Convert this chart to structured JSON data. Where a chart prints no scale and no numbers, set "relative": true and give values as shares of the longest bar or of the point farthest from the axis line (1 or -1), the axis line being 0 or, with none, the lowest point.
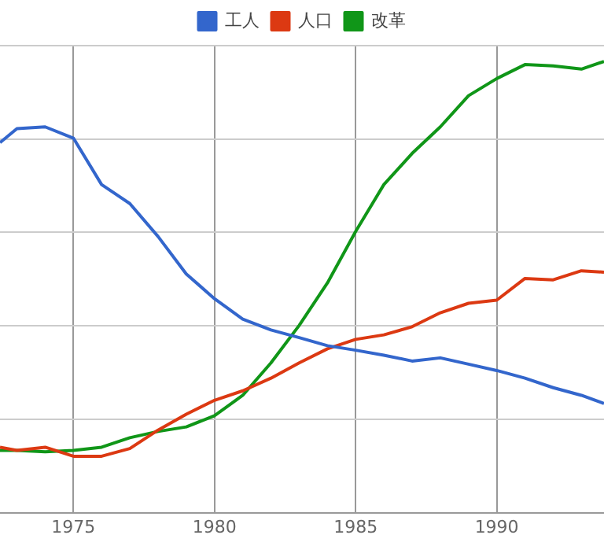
{
  "chart_data": {
    "type": "line",
    "relative": true,
    "grid": true,
    "legend": "top",
    "marker": "none",
    "line_style": "solid",
    "x": [
      1972.4,
      1973,
      1974,
      1975,
      1976,
      1977,
      1978,
      1979,
      1980,
      1981,
      1982,
      1983,
      1984,
      1985,
      1986,
      1987,
      1988,
      1989,
      1990,
      1991,
      1992,
      1993,
      1993.8
    ],
    "xlim": [
      1972.4,
      1993.8
    ],
    "xticks": [
      1975,
      1980,
      1985,
      1990
    ],
    "series": [
      {
        "name": "工人",
        "color": "#3366cc",
        "values": [
          0.82,
          0.851,
          0.855,
          0.83,
          0.727,
          0.685,
          0.612,
          0.529,
          0.474,
          0.429,
          0.405,
          0.388,
          0.37,
          0.36,
          0.349,
          0.336,
          0.343,
          0.329,
          0.315,
          0.298,
          0.277,
          0.26,
          0.242
        ]
      },
      {
        "name": "人口",
        "color": "#dc3912",
        "values": [
          0.145,
          0.138,
          0.145,
          0.125,
          0.125,
          0.142,
          0.183,
          0.218,
          0.249,
          0.27,
          0.298,
          0.332,
          0.363,
          0.384,
          0.394,
          0.412,
          0.443,
          0.464,
          0.471,
          0.519,
          0.516,
          0.536,
          0.533
        ]
      },
      {
        "name": "改革",
        "color": "#109618",
        "values": [
          0.138,
          0.138,
          0.135,
          0.138,
          0.145,
          0.166,
          0.18,
          0.19,
          0.215,
          0.26,
          0.332,
          0.415,
          0.509,
          0.623,
          0.727,
          0.796,
          0.855,
          0.924,
          0.962,
          0.993,
          0.99,
          0.983,
          1
        ]
      }
    ]
  }
}
